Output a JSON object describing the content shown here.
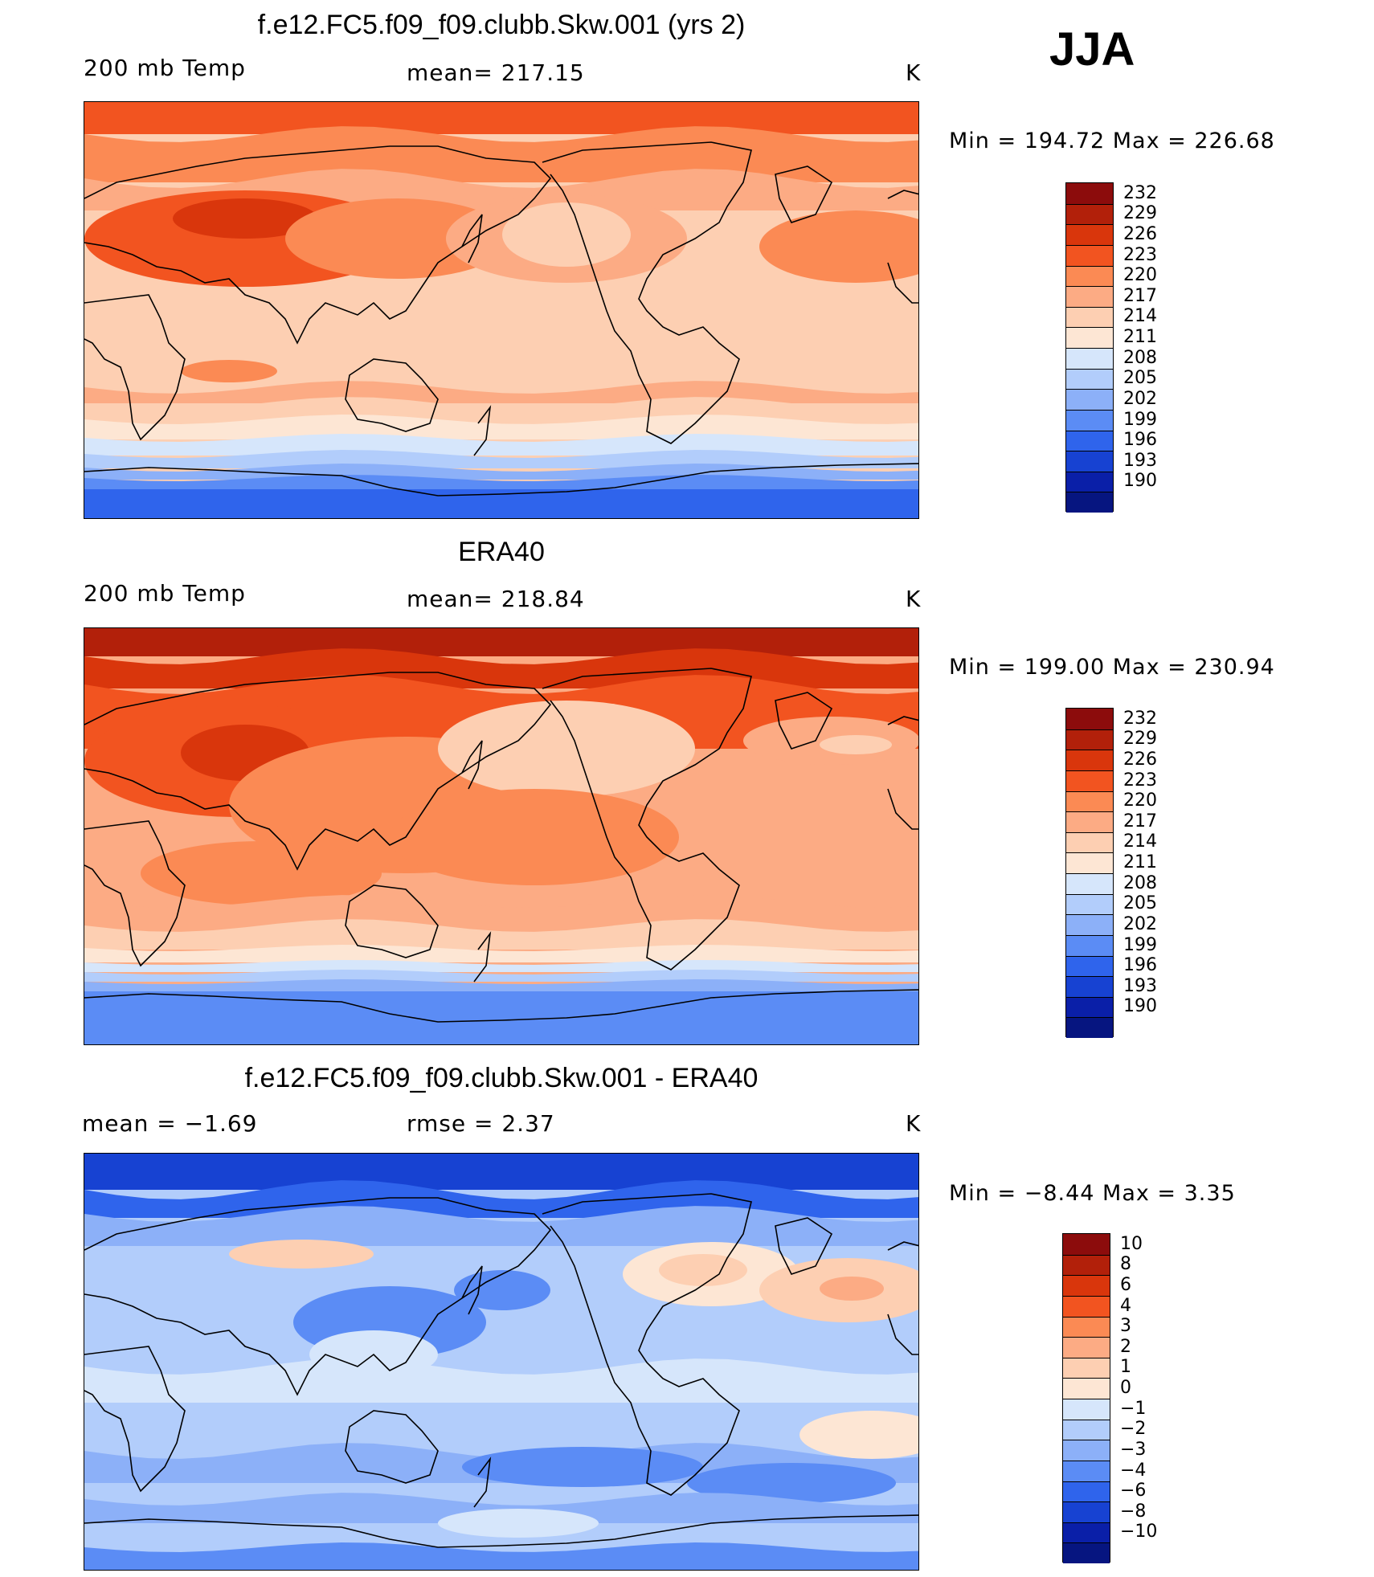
{
  "season": "JJA",
  "panels": [
    {
      "title": "f.e12.FC5.f09_f09.clubb.Skw.001 (yrs 2)",
      "left_label": "200 mb Temp",
      "center_label": "mean= 217.15",
      "units": "K",
      "minmax": "Min = 194.72 Max = 226.68",
      "map_kind": "model"
    },
    {
      "title": "ERA40",
      "left_label": "200 mb Temp",
      "center_label": "mean= 218.84",
      "units": "K",
      "minmax": "Min = 199.00 Max = 230.94",
      "map_kind": "obs"
    },
    {
      "title": "f.e12.FC5.f09_f09.clubb.Skw.001 - ERA40",
      "left_label": "mean =   −1.69",
      "center_label": "rmse =    2.37",
      "units": "K",
      "minmax": "Min =   −8.44 Max =     3.35",
      "map_kind": "diff"
    }
  ],
  "chart_data": [
    {
      "type": "heatmap",
      "title": "f.e12.FC5.f09_f09.clubb.Skw.001 (yrs 2)",
      "variable": "200 mb Temp",
      "units": "K",
      "mean": 217.15,
      "min": 194.72,
      "max": 226.68,
      "projection": "cylindrical equidistant, Pacific-centered",
      "colorbar_levels": [
        232,
        229,
        226,
        223,
        220,
        217,
        214,
        211,
        208,
        205,
        202,
        199,
        196,
        193,
        190
      ],
      "colorbar_colors": [
        "#8c0c0c",
        "#b2200a",
        "#d9360c",
        "#f25420",
        "#fb8a54",
        "#fcab84",
        "#fdcfb2",
        "#fde6d4",
        "#d6e6fb",
        "#b2cdfb",
        "#8cb0f8",
        "#5b8cf5",
        "#2f64ec",
        "#1742d2",
        "#0a1fa8",
        "#061580"
      ]
    },
    {
      "type": "heatmap",
      "title": "ERA40",
      "variable": "200 mb Temp",
      "units": "K",
      "mean": 218.84,
      "min": 199.0,
      "max": 230.94,
      "projection": "cylindrical equidistant, Pacific-centered",
      "colorbar_levels": [
        232,
        229,
        226,
        223,
        220,
        217,
        214,
        211,
        208,
        205,
        202,
        199,
        196,
        193,
        190
      ],
      "colorbar_colors": [
        "#8c0c0c",
        "#b2200a",
        "#d9360c",
        "#f25420",
        "#fb8a54",
        "#fcab84",
        "#fdcfb2",
        "#fde6d4",
        "#d6e6fb",
        "#b2cdfb",
        "#8cb0f8",
        "#5b8cf5",
        "#2f64ec",
        "#1742d2",
        "#0a1fa8",
        "#061580"
      ]
    },
    {
      "type": "heatmap",
      "title": "f.e12.FC5.f09_f09.clubb.Skw.001 - ERA40",
      "units": "K",
      "mean": -1.69,
      "rmse": 2.37,
      "min": -8.44,
      "max": 3.35,
      "projection": "cylindrical equidistant, Pacific-centered",
      "colorbar_levels": [
        10,
        8,
        6,
        4,
        3,
        2,
        1,
        0,
        -1,
        -2,
        -3,
        -4,
        -6,
        -8,
        -10
      ],
      "colorbar_labels": [
        "10",
        "8",
        "6",
        "4",
        "3",
        "2",
        "1",
        "0",
        "−1",
        "−2",
        "−3",
        "−4",
        "−6",
        "−8",
        "−10"
      ],
      "colorbar_colors": [
        "#8c0c0c",
        "#b2200a",
        "#d9360c",
        "#f25420",
        "#fb8a54",
        "#fcab84",
        "#fdcfb2",
        "#fde6d4",
        "#d6e6fb",
        "#b2cdfb",
        "#8cb0f8",
        "#5b8cf5",
        "#2f64ec",
        "#1742d2",
        "#0a1fa8",
        "#061580"
      ]
    }
  ]
}
